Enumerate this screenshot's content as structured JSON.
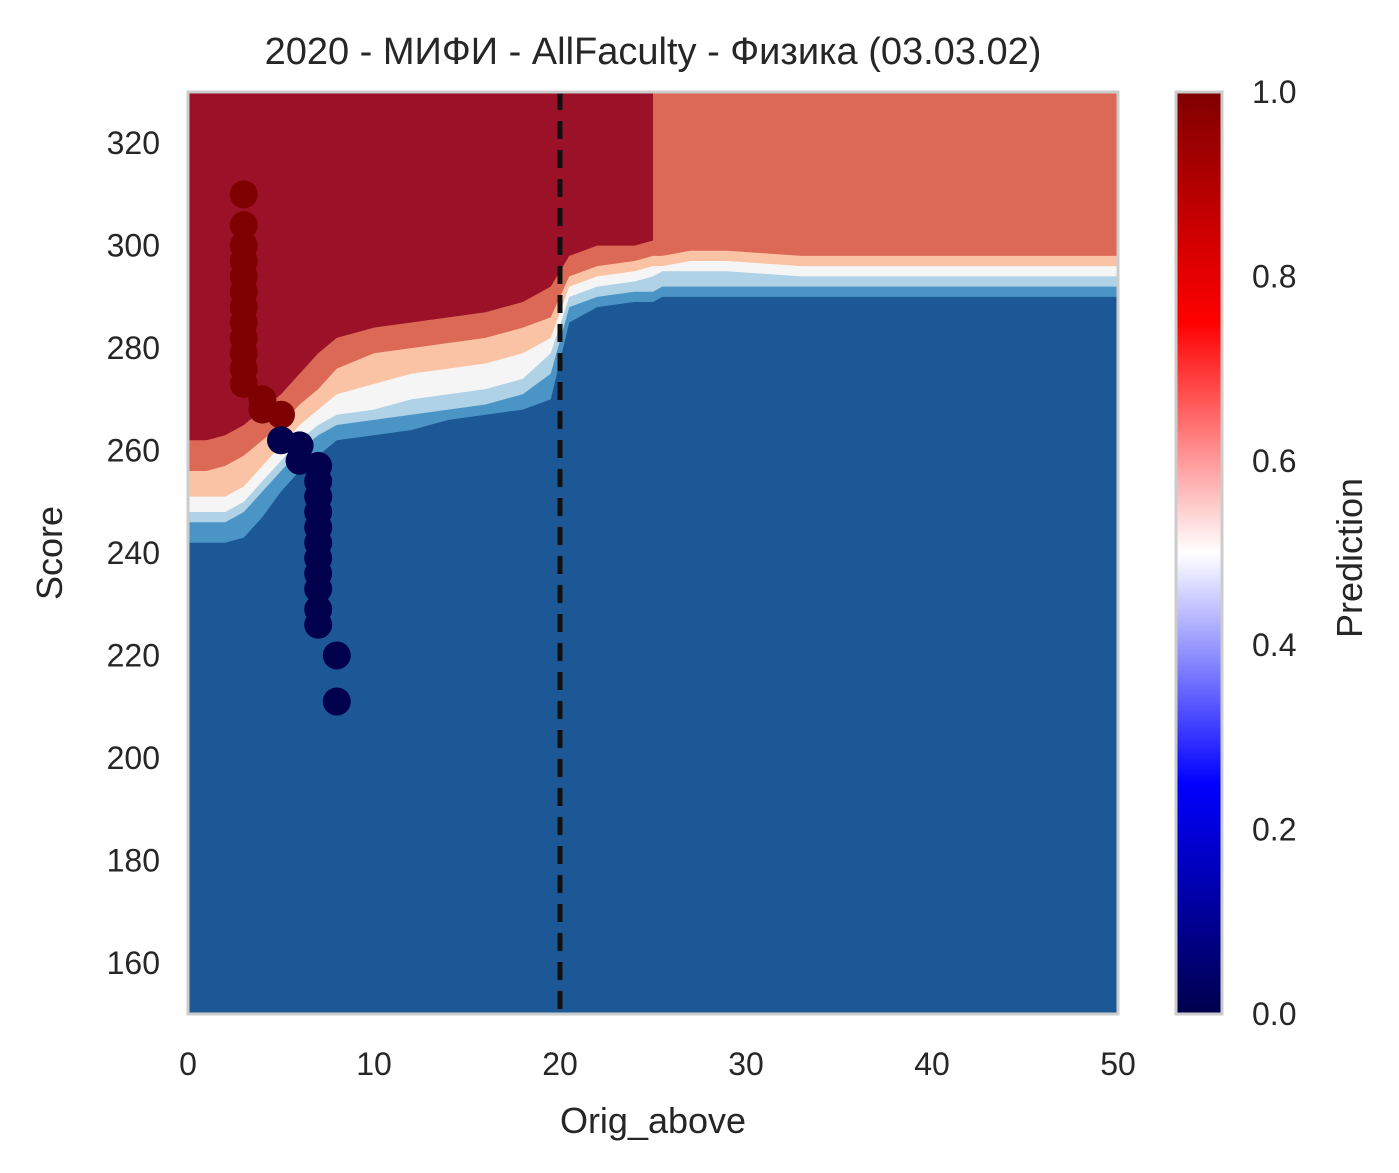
{
  "chart_data": {
    "type": "heatmap",
    "title": "2020 - МИФИ - AllFaculty - Физика (03.03.02)",
    "xlabel": "Orig_above",
    "ylabel": "Score",
    "xlim": [
      0,
      50
    ],
    "ylim": [
      150,
      330
    ],
    "xticks": [
      0,
      10,
      20,
      30,
      40,
      50
    ],
    "yticks": [
      160,
      180,
      200,
      220,
      240,
      260,
      280,
      300,
      320
    ],
    "grid": false,
    "colorbar": {
      "label": "Prediction",
      "range": [
        0,
        1
      ],
      "ticks": [
        "0.0",
        "0.2",
        "0.4",
        "0.6",
        "0.8",
        "1.0"
      ],
      "colormap": [
        "#00004c",
        "#0000ff",
        "#ffffff",
        "#ff0000",
        "#7f0000"
      ]
    },
    "vertical_line": {
      "x": 20,
      "style": "dashed",
      "color": "#111111"
    },
    "contour_levels": [
      {
        "range": "0.0-0.1",
        "color": "#1c5796"
      },
      {
        "range": "0.1-0.2",
        "color": "#4a95c5"
      },
      {
        "range": "0.2-0.3",
        "color": "#afd2e7"
      },
      {
        "range": "0.3-0.4",
        "color": "#f5f5f5"
      },
      {
        "range": "0.4-0.5",
        "color": "#fbc3a5"
      },
      {
        "range": "0.5-0.6",
        "color": "#dc6955"
      },
      {
        "range": "0.6-1.0",
        "color": "#9b1127"
      }
    ],
    "boundary_x": [
      0,
      1,
      2,
      3,
      4,
      5,
      6,
      7,
      8,
      10,
      12,
      14,
      16,
      18,
      19.5,
      20.5,
      22,
      24,
      25,
      25.5,
      27,
      29,
      33,
      40,
      50
    ],
    "boundaries": [
      [
        242,
        242,
        242,
        243,
        247,
        252,
        256,
        259,
        262,
        263,
        264,
        266,
        267,
        268,
        270,
        285,
        288,
        289,
        289,
        290,
        290,
        290,
        290,
        290,
        290
      ],
      [
        246,
        246,
        246,
        248,
        252,
        256,
        260,
        263,
        265,
        266,
        267,
        268,
        269,
        271,
        275,
        288,
        290,
        291,
        291,
        292,
        292,
        292,
        292,
        292,
        292
      ],
      [
        248,
        248,
        248,
        250,
        254,
        258,
        262,
        265,
        267,
        268,
        270,
        271,
        272,
        274,
        279,
        290,
        292,
        293,
        294,
        295,
        295,
        295,
        294,
        294,
        294
      ],
      [
        251,
        251,
        251,
        253,
        257,
        261,
        265,
        268,
        271,
        273,
        275,
        276,
        277,
        279,
        282,
        292,
        294,
        295,
        296,
        296,
        297,
        297,
        296,
        296,
        296
      ],
      [
        256,
        256,
        257,
        259,
        262,
        265,
        269,
        272,
        276,
        279,
        280,
        281,
        282,
        284,
        286,
        294,
        296,
        297,
        298,
        298,
        299,
        299,
        298,
        298,
        298
      ],
      [
        262,
        262,
        263,
        265,
        268,
        271,
        275,
        279,
        282,
        284,
        285,
        286,
        287,
        289,
        292,
        298,
        300,
        300,
        301,
        301,
        301,
        301,
        301,
        301,
        301
      ]
    ],
    "region_top_right": {
      "x_from": 25,
      "color": "#dc6955"
    },
    "series": [
      {
        "name": "1",
        "color": "#7f0000",
        "points": [
          [
            3,
            310
          ],
          [
            3,
            304
          ],
          [
            3,
            300
          ],
          [
            3,
            297
          ],
          [
            3,
            294
          ],
          [
            3,
            291
          ],
          [
            3,
            288
          ],
          [
            3,
            285
          ],
          [
            3,
            282
          ],
          [
            3,
            279
          ],
          [
            3,
            276
          ],
          [
            3,
            273
          ],
          [
            4,
            270
          ],
          [
            4,
            268
          ],
          [
            5,
            267
          ]
        ]
      },
      {
        "name": "0",
        "color": "#00004c",
        "points": [
          [
            5,
            262
          ],
          [
            6,
            261
          ],
          [
            6,
            258
          ],
          [
            7,
            257
          ],
          [
            7,
            254
          ],
          [
            7,
            251
          ],
          [
            7,
            248
          ],
          [
            7,
            245
          ],
          [
            7,
            242
          ],
          [
            7,
            239
          ],
          [
            7,
            236
          ],
          [
            7,
            233
          ],
          [
            7,
            229
          ],
          [
            7,
            226
          ],
          [
            8,
            220
          ],
          [
            8,
            211
          ]
        ]
      }
    ]
  }
}
